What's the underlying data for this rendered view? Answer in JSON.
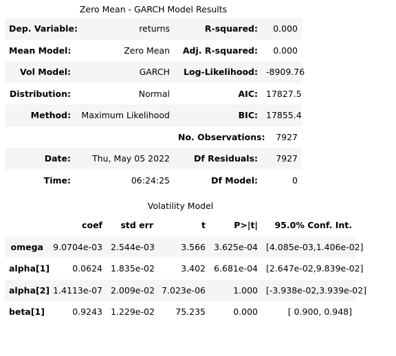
{
  "summary": {
    "title": "Zero Mean - GARCH Model Results",
    "rows": [
      {
        "l1": "Dep. Variable:",
        "v1": "returns",
        "l2": "R-squared:",
        "v2": "0.000"
      },
      {
        "l1": "Mean Model:",
        "v1": "Zero Mean",
        "l2": "Adj. R-squared:",
        "v2": "0.000"
      },
      {
        "l1": "Vol Model:",
        "v1": "GARCH",
        "l2": "Log-Likelihood:",
        "v2": "-8909.76"
      },
      {
        "l1": "Distribution:",
        "v1": "Normal",
        "l2": "AIC:",
        "v2": "17827.5"
      },
      {
        "l1": "Method:",
        "v1": "Maximum Likelihood",
        "l2": "BIC:",
        "v2": "17855.4"
      },
      {
        "l1": "",
        "v1": "",
        "l2": "No. Observations:",
        "v2": "7927"
      },
      {
        "l1": "Date:",
        "v1": "Thu, May 05 2022",
        "l2": "Df Residuals:",
        "v2": "7927"
      },
      {
        "l1": "Time:",
        "v1": "06:24:25",
        "l2": "Df Model:",
        "v2": "0"
      }
    ]
  },
  "volatility": {
    "title": "Volatility Model",
    "headers": [
      "",
      "coef",
      "std err",
      "t",
      "P>|t|",
      "95.0% Conf. Int."
    ],
    "rows": [
      [
        "omega",
        "9.0704e-03",
        "2.544e-03",
        "3.566",
        "3.625e-04",
        "[4.085e-03,1.406e-02]"
      ],
      [
        "alpha[1]",
        "0.0624",
        "1.835e-02",
        "3.402",
        "6.681e-04",
        "[2.647e-02,9.839e-02]"
      ],
      [
        "alpha[2]",
        "1.4113e-07",
        "2.009e-02",
        "7.023e-06",
        "1.000",
        "[-3.938e-02,3.939e-02]"
      ],
      [
        "beta[1]",
        "0.9243",
        "1.229e-02",
        "75.235",
        "0.000",
        "[ 0.900, 0.948]"
      ]
    ]
  }
}
